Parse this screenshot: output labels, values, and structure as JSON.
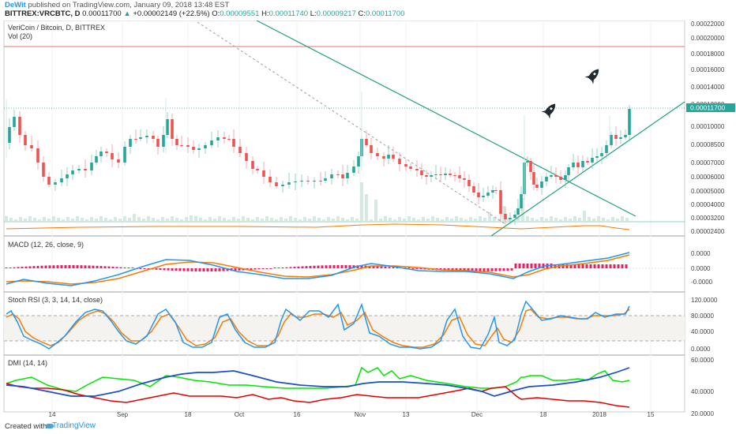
{
  "header": {
    "author": "DeWit",
    "published_text": "published on TradingView.com, January 09, 2018 13:48 EST",
    "symbol": "BITTREX:VRCBTC, D",
    "price": "0.00011700",
    "change": "+0.00002149 (+22.5%)",
    "ohlc": {
      "o_label": "O:",
      "o": "0.00009551",
      "h_label": "H:",
      "h": "0.00011740",
      "l_label": "L:",
      "l": "0.00009217",
      "c_label": "C:",
      "c": "0.00011700"
    }
  },
  "panels": {
    "price": {
      "title": "VeriCoin / Bitcoin, D, BITTREX",
      "vol": "Vol (20)",
      "y_labels": [
        "0.00022000",
        "0.00020000",
        "0.00018000",
        "0.00016000",
        "0.00014000",
        "0.00012000",
        "0.00010000",
        "0.00008500",
        "0.00007000",
        "0.00006000",
        "0.00005000",
        "0.00004000",
        "0.00003200",
        "0.00002400"
      ],
      "current_price": "0.00011700"
    },
    "macd": {
      "title": "MACD (12, 26, close, 9)",
      "y_labels": [
        "0.0000",
        "0.0000",
        "-0.0000"
      ]
    },
    "stoch": {
      "title": "Stoch RSI (3, 3, 14, 14, close)",
      "y_labels": [
        "120.0000",
        "80.0000",
        "40.0000",
        "0.0000"
      ]
    },
    "dmi": {
      "title": "DMI (14, 14)",
      "y_labels": [
        "60.0000",
        "40.0000",
        "20.0000"
      ]
    }
  },
  "x_axis": [
    "14",
    "Sep",
    "18",
    "Oct",
    "16",
    "Nov",
    "13",
    "Dec",
    "18",
    "2018",
    "15"
  ],
  "footer": {
    "created_with": "Created with",
    "brand": "TradingView"
  },
  "colors": {
    "up": "#26a69a",
    "down": "#ef5350",
    "teal": "#26a17b",
    "blue": "#2196f3",
    "orange": "#f57c00",
    "macd_hist": "#e91e63",
    "dmi_plus": "#00e600",
    "dmi_minus": "#e00000",
    "adx": "#1a4fc8"
  }
}
